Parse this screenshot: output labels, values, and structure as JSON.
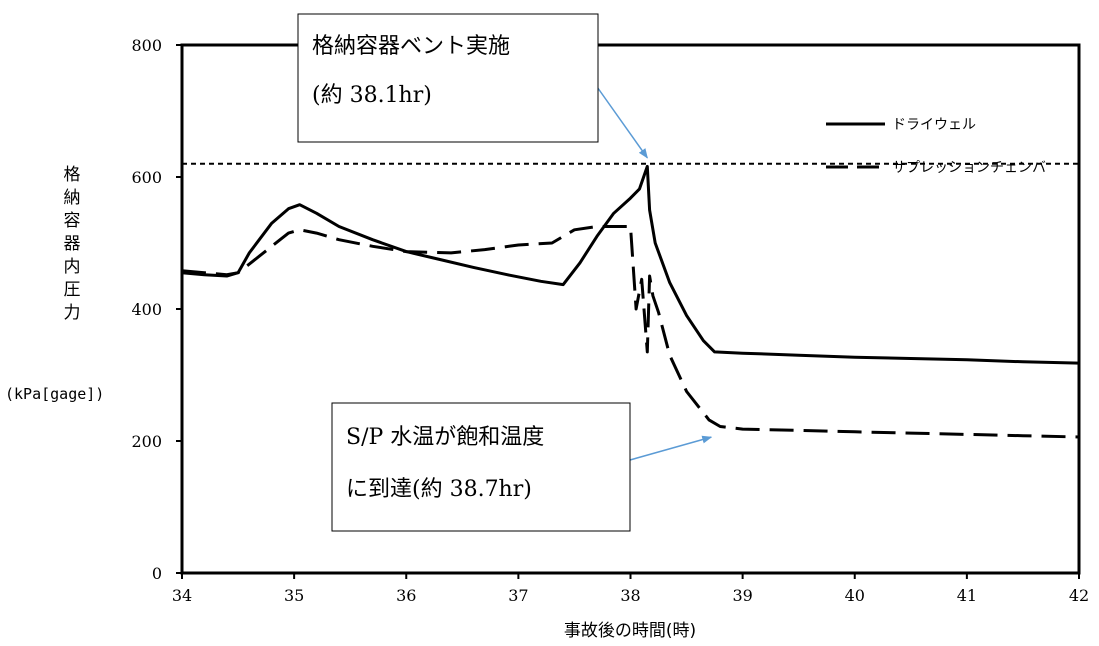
{
  "chart_data": {
    "type": "line",
    "xlabel": "事故後の時間(時)",
    "ylabel_chars": [
      "格",
      "納",
      "容",
      "器",
      "内",
      "圧",
      "力"
    ],
    "ylabel_unit": "(kPa[gage])",
    "xlim": [
      34,
      42
    ],
    "ylim": [
      0,
      800
    ],
    "xticks": [
      34,
      35,
      36,
      37,
      38,
      39,
      40,
      41,
      42
    ],
    "yticks": [
      0,
      200,
      400,
      600,
      800
    ],
    "grid": false,
    "legend_position": "top-right",
    "reference_line": {
      "y": 620,
      "style": "dotted"
    },
    "series": [
      {
        "name": "ドライウェル",
        "style": "solid",
        "x": [
          34.0,
          34.2,
          34.4,
          34.5,
          34.6,
          34.8,
          34.95,
          35.05,
          35.2,
          35.4,
          35.7,
          36.0,
          36.3,
          36.6,
          36.9,
          37.2,
          37.4,
          37.55,
          37.7,
          37.85,
          38.0,
          38.08,
          38.15,
          38.17,
          38.22,
          38.35,
          38.5,
          38.65,
          38.75,
          39.0,
          39.5,
          40.0,
          40.5,
          41.0,
          41.5,
          42.0
        ],
        "y": [
          455,
          452,
          450,
          455,
          485,
          530,
          552,
          558,
          545,
          525,
          505,
          487,
          475,
          463,
          452,
          442,
          437,
          470,
          510,
          545,
          568,
          582,
          616,
          550,
          500,
          440,
          390,
          352,
          335,
          333,
          330,
          327,
          325,
          323,
          320,
          318
        ]
      },
      {
        "name": "サプレッションチェンバ",
        "style": "dashed",
        "x": [
          34.0,
          34.2,
          34.4,
          34.5,
          34.6,
          34.8,
          34.95,
          35.05,
          35.2,
          35.4,
          35.7,
          36.0,
          36.4,
          36.7,
          37.0,
          37.3,
          37.5,
          37.7,
          37.85,
          38.0,
          38.05,
          38.1,
          38.15,
          38.17,
          38.2,
          38.25,
          38.35,
          38.5,
          38.7,
          38.8,
          39.0,
          39.5,
          40.0,
          40.5,
          41.0,
          41.5,
          42.0
        ],
        "y": [
          458,
          455,
          452,
          455,
          468,
          495,
          515,
          520,
          515,
          505,
          495,
          487,
          485,
          490,
          497,
          500,
          520,
          525,
          525,
          525,
          400,
          445,
          335,
          450,
          420,
          395,
          330,
          275,
          232,
          222,
          218,
          216,
          214,
          212,
          210,
          208,
          206
        ]
      }
    ],
    "annotations": [
      {
        "lines": [
          "格納容器ベント実施",
          "(約 38.1hr)"
        ],
        "target_x": 38.15,
        "target_y": 620
      },
      {
        "lines": [
          "S/P 水温が飽和温度",
          "に到達(約 38.7hr)"
        ],
        "target_x": 38.72,
        "target_y": 215
      }
    ]
  }
}
